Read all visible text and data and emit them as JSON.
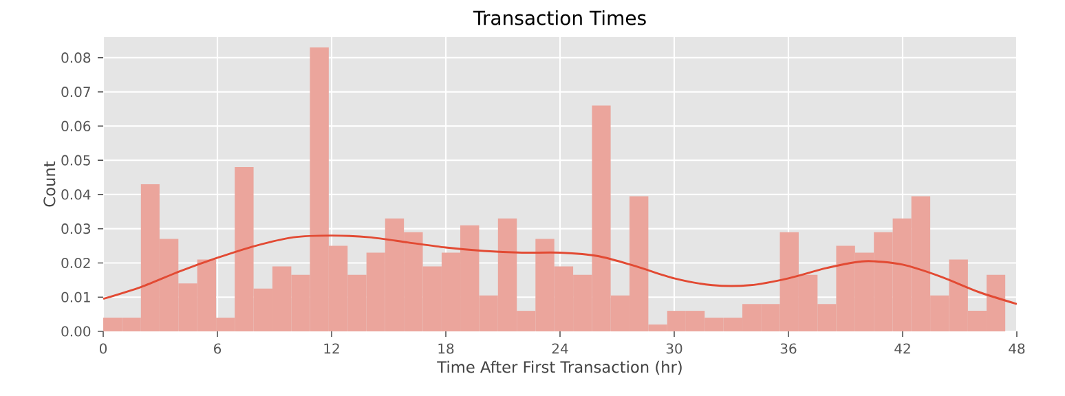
{
  "chart_data": {
    "type": "histogram",
    "title": "Transaction Times",
    "xlabel": "Time After First Transaction (hr)",
    "ylabel": "Count",
    "bins": [
      0,
      0.99,
      1.98,
      2.96,
      3.95,
      4.94,
      5.93,
      6.91,
      7.9,
      8.89,
      9.88,
      10.86,
      11.85,
      12.84,
      13.83,
      14.81,
      15.8,
      16.79,
      17.78,
      18.76,
      19.75,
      20.74,
      21.73,
      22.71,
      23.7,
      24.69,
      25.68,
      26.66,
      27.65,
      28.64,
      29.63,
      30.61,
      31.6,
      32.59,
      33.58,
      34.56,
      35.55,
      36.54,
      37.53,
      38.51,
      39.5,
      40.49,
      41.48,
      42.46,
      43.45,
      44.44,
      45.43,
      46.41,
      47.4
    ],
    "values": [
      0.004,
      0.004,
      0.043,
      0.027,
      0.014,
      0.021,
      0.004,
      0.048,
      0.0125,
      0.019,
      0.0165,
      0.083,
      0.025,
      0.0165,
      0.023,
      0.033,
      0.029,
      0.019,
      0.023,
      0.031,
      0.0105,
      0.033,
      0.006,
      0.027,
      0.019,
      0.0165,
      0.066,
      0.0105,
      0.0395,
      0.002,
      0.006,
      0.006,
      0.004,
      0.004,
      0.008,
      0.008,
      0.029,
      0.0165,
      0.008,
      0.025,
      0.023,
      0.029,
      0.033,
      0.0395,
      0.0105,
      0.021,
      0.006,
      0.0165
    ],
    "color": "#eba59c",
    "series": [
      {
        "type": "line",
        "color": "#e24a33",
        "x": [
          0,
          2,
          4,
          6,
          8,
          10,
          12,
          14,
          16,
          18,
          20,
          22,
          24,
          26,
          28,
          30,
          32,
          34,
          36,
          38,
          40,
          42,
          44,
          46,
          48
        ],
        "values": [
          0.0095,
          0.013,
          0.0175,
          0.0215,
          0.025,
          0.0275,
          0.028,
          0.0275,
          0.026,
          0.0245,
          0.0235,
          0.023,
          0.023,
          0.022,
          0.019,
          0.0155,
          0.0135,
          0.0135,
          0.0155,
          0.0185,
          0.0205,
          0.0195,
          0.016,
          0.0115,
          0.008
        ]
      }
    ],
    "xlim": [
      0,
      48
    ],
    "ylim": [
      0,
      0.086
    ],
    "xticks": [
      0,
      6,
      12,
      18,
      24,
      30,
      36,
      42,
      48
    ],
    "yticks": [
      {
        "value": 0,
        "label": "0.00"
      },
      {
        "value": 0.01,
        "label": "0.01"
      },
      {
        "value": 0.02,
        "label": "0.02"
      },
      {
        "value": 0.03,
        "label": "0.03"
      },
      {
        "value": 0.04,
        "label": "0.04"
      },
      {
        "value": 0.05,
        "label": "0.05"
      },
      {
        "value": 0.06,
        "label": "0.06"
      },
      {
        "value": 0.07,
        "label": "0.07"
      },
      {
        "value": 0.08,
        "label": "0.08"
      }
    ],
    "grid": true
  }
}
